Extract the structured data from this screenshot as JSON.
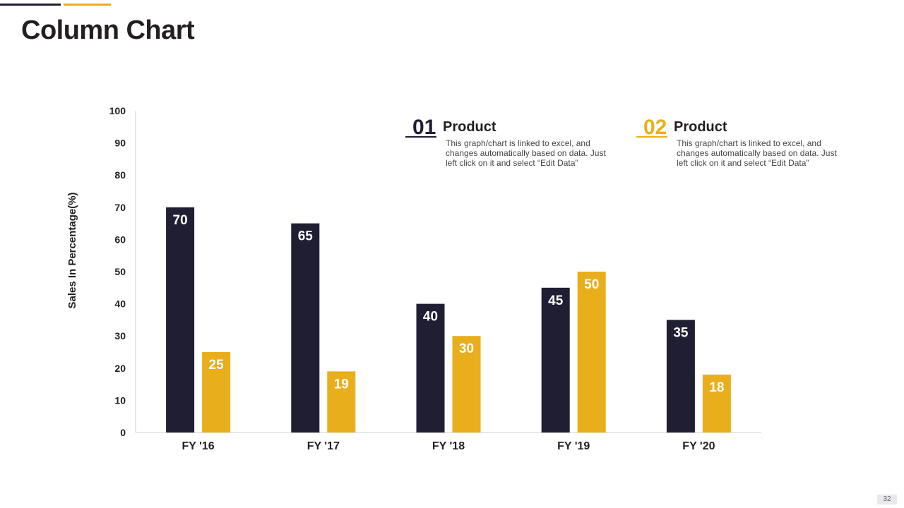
{
  "slide": {
    "title": "Column Chart",
    "page_number": "32"
  },
  "colors": {
    "dark": "#1f1e33",
    "gold": "#e9ae1c",
    "axis": "#d0d0d0"
  },
  "callouts": [
    {
      "number": "01",
      "heading": "Product",
      "text": "This graph/chart is linked to excel, and changes automatically based on data. Just left click on it and select “Edit Data”",
      "color": "#1f1e33"
    },
    {
      "number": "02",
      "heading": "Product",
      "text": "This graph/chart is linked to excel, and changes automatically based on data. Just left click on it and select “Edit Data”",
      "color": "#e9ae1c"
    }
  ],
  "chart_data": {
    "type": "bar",
    "categories": [
      "FY '16",
      "FY '17",
      "FY '18",
      "FY '19",
      "FY '20"
    ],
    "series": [
      {
        "values": [
          70,
          65,
          40,
          45,
          35
        ],
        "color": "#1f1e33"
      },
      {
        "values": [
          25,
          19,
          30,
          50,
          18
        ],
        "color": "#e9ae1c"
      }
    ],
    "ylabel": "Sales In Percentage(%)",
    "xlabel": "",
    "ylim": [
      0,
      100
    ],
    "yticks": [
      0,
      10,
      20,
      30,
      40,
      50,
      60,
      70,
      80,
      90,
      100
    ],
    "data_labels": true,
    "grid": false,
    "legend": "none"
  }
}
